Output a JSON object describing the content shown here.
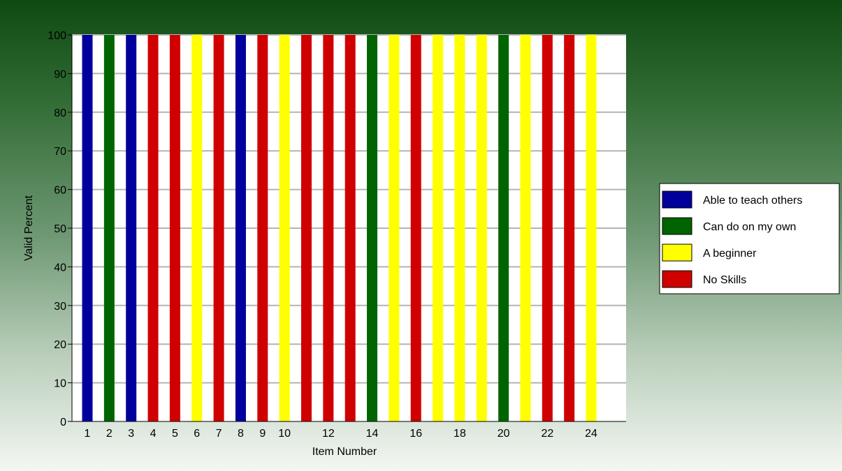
{
  "chart_data": {
    "type": "bar",
    "xlabel": "Item Number",
    "ylabel": "Valid Percent",
    "ylim": [
      0,
      100
    ],
    "yticks": [
      0,
      10,
      20,
      30,
      40,
      50,
      60,
      70,
      80,
      90,
      100
    ],
    "grid": true,
    "legend_position": "right",
    "categories": [
      1,
      2,
      3,
      4,
      5,
      6,
      7,
      8,
      9,
      10,
      11,
      12,
      13,
      14,
      15,
      16,
      17,
      18,
      19,
      20,
      21,
      22,
      23,
      24
    ],
    "xtick_labels": [
      "1",
      "2",
      "3",
      "4",
      "5",
      "6",
      "7",
      "8",
      "9",
      "10",
      "",
      "12",
      "",
      "14",
      "",
      "16",
      "",
      "18",
      "",
      "20",
      "",
      "22",
      "",
      "24"
    ],
    "values": [
      100,
      100,
      100,
      100,
      100,
      100,
      100,
      100,
      100,
      100,
      100,
      100,
      100,
      100,
      100,
      100,
      100,
      100,
      100,
      100,
      100,
      100,
      100,
      100
    ],
    "bar_series": [
      "Able to teach others",
      "Can do on my own",
      "Able to teach others",
      "No Skills",
      "No Skills",
      "A beginner",
      "No Skills",
      "Able to teach others",
      "No Skills",
      "A beginner",
      "No Skills",
      "No Skills",
      "No Skills",
      "Can do on my own",
      "A beginner",
      "No Skills",
      "A beginner",
      "A beginner",
      "A beginner",
      "Can do on my own",
      "A beginner",
      "No Skills",
      "No Skills",
      "A beginner"
    ],
    "legend": [
      {
        "name": "Able to teach others",
        "color": "#00009c"
      },
      {
        "name": "Can do on my own",
        "color": "#006400"
      },
      {
        "name": "A beginner",
        "color": "#ffff00"
      },
      {
        "name": "No Skills",
        "color": "#d00000"
      }
    ]
  }
}
